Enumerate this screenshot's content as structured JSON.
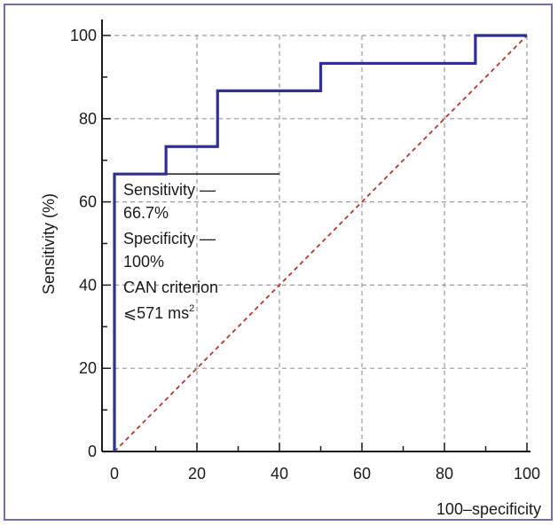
{
  "chart_data": {
    "type": "line",
    "xlabel": "100–specificity",
    "ylabel": "Sensitivity (%)",
    "xlim": [
      0,
      100
    ],
    "ylim": [
      0,
      100
    ],
    "xticks": [
      0,
      20,
      40,
      60,
      80,
      100
    ],
    "yticks": [
      0,
      20,
      40,
      60,
      80,
      100
    ],
    "grid": true,
    "series": [
      {
        "style": "step",
        "color": "#2e3192",
        "x": [
          0,
          0,
          12.5,
          12.5,
          25,
          25,
          50,
          50,
          87.5,
          87.5,
          100
        ],
        "y": [
          0,
          66.7,
          66.7,
          73.3,
          73.3,
          86.7,
          86.7,
          93.3,
          93.3,
          100,
          100
        ]
      },
      {
        "style": "dashed-reference",
        "color": "#b03a2e",
        "x": [
          0,
          100
        ],
        "y": [
          0,
          100
        ]
      }
    ],
    "annotation": {
      "anchor_x": 0,
      "anchor_y": 66.7,
      "leader_to_x": 40,
      "lines": [
        "Sensitivity —",
        "66.7%",
        "Specificity —",
        "100%",
        "CAN criterion",
        "⩽571 ms"
      ],
      "superscript": "2"
    }
  }
}
